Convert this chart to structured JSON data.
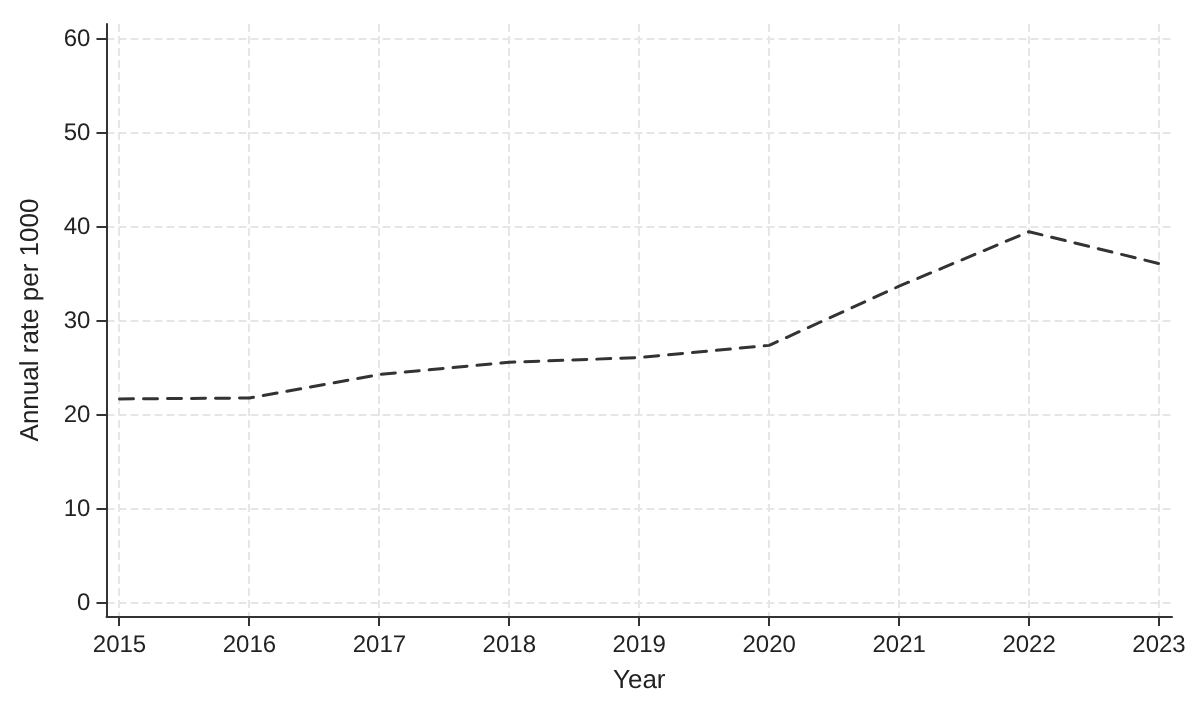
{
  "chart_data": {
    "type": "line",
    "xlabel": "Year",
    "ylabel": "Annual rate per 1000",
    "x": [
      2015,
      2016,
      2017,
      2018,
      2019,
      2020,
      2021,
      2022,
      2023
    ],
    "series": [
      {
        "color": "#333333",
        "values": [
          21.6,
          21.7,
          24.2,
          25.5,
          26.0,
          27.3,
          33.6,
          39.4,
          36.0
        ]
      }
    ],
    "xlim": [
      2014.9,
      2023.1
    ],
    "xticks": [
      2015,
      2016,
      2017,
      2018,
      2019,
      2020,
      2021,
      2022,
      2023
    ],
    "ylim": [
      -1.5,
      61.5
    ],
    "yticks": [
      0,
      10,
      20,
      30,
      40,
      50,
      60
    ],
    "grid": true,
    "marker": "none",
    "line_style": "dashed"
  }
}
